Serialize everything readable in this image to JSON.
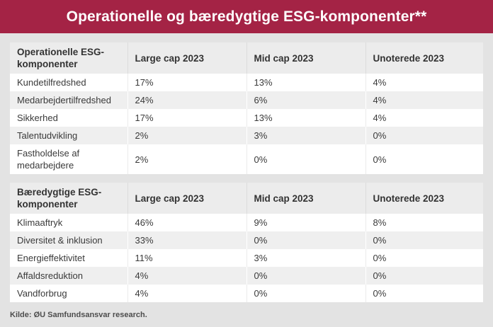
{
  "title": "Operationelle og bæredygtige ESG-komponenter**",
  "source_note": "Kilde: ØU Samfundsansvar research.",
  "colors": {
    "banner_bg": "#a42345",
    "banner_text": "#ffffff",
    "page_bg": "#e3e3e3",
    "header_row_bg": "#ececec",
    "alt_row_bg": "#efefef",
    "row_bg": "#ffffff",
    "text": "#3a3a3a"
  },
  "chart_data": [
    {
      "type": "table",
      "title": "Operationelle ESG-komponenter",
      "columns": [
        "Operationelle ESG-komponenter",
        "Large cap 2023",
        "Mid cap 2023",
        "Unoterede 2023"
      ],
      "rows": [
        {
          "label": "Kundetilfredshed",
          "values": [
            "17%",
            "13%",
            "4%"
          ]
        },
        {
          "label": "Medarbejdertilfredshed",
          "values": [
            "24%",
            "6%",
            "4%"
          ]
        },
        {
          "label": "Sikkerhed",
          "values": [
            "17%",
            "13%",
            "4%"
          ]
        },
        {
          "label": "Talentudvikling",
          "values": [
            "2%",
            "3%",
            "0%"
          ]
        },
        {
          "label": "Fastholdelse af medarbejdere",
          "values": [
            "2%",
            "0%",
            "0%"
          ]
        }
      ]
    },
    {
      "type": "table",
      "title": "Bæredygtige ESG-komponenter",
      "columns": [
        "Bæredygtige ESG-komponenter",
        "Large cap 2023",
        "Mid cap 2023",
        "Unoterede 2023"
      ],
      "rows": [
        {
          "label": "Klimaaftryk",
          "values": [
            "46%",
            "9%",
            "8%"
          ]
        },
        {
          "label": "Diversitet & inklusion",
          "values": [
            "33%",
            "0%",
            "0%"
          ]
        },
        {
          "label": "Energieffektivitet",
          "values": [
            "11%",
            "3%",
            "0%"
          ]
        },
        {
          "label": "Affaldsreduktion",
          "values": [
            "4%",
            "0%",
            "0%"
          ]
        },
        {
          "label": "Vandforbrug",
          "values": [
            "4%",
            "0%",
            "0%"
          ]
        }
      ]
    }
  ]
}
